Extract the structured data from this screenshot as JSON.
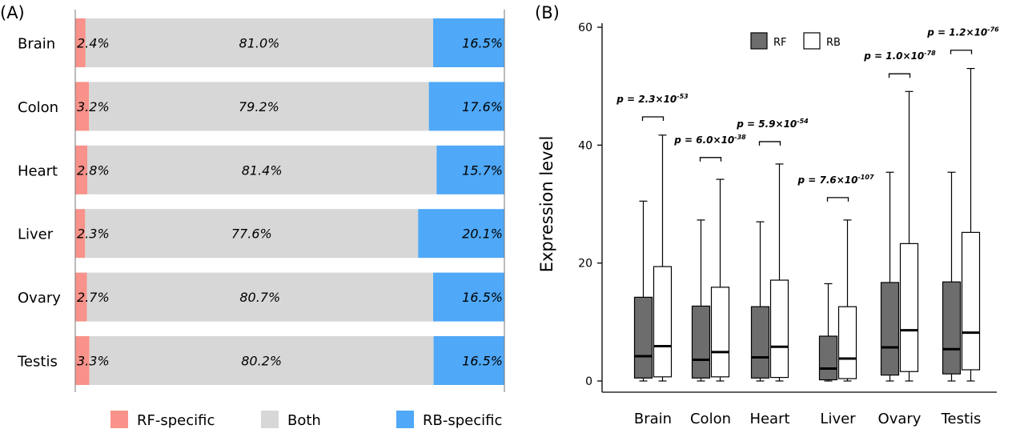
{
  "colors": {
    "rf_specific": "#f8928a",
    "both": "#d7d7d7",
    "rb_specific": "#4fa8f8",
    "rf_box": "#6d6d6d",
    "rb_box": "#ffffff",
    "line": "#000000"
  },
  "chart_data": [
    {
      "panel_label": "(A)",
      "type": "bar",
      "orientation": "horizontal",
      "stacked": true,
      "categories": [
        "Brain",
        "Colon",
        "Heart",
        "Liver",
        "Ovary",
        "Testis"
      ],
      "series": [
        {
          "name": "RF-specific",
          "values": [
            2.4,
            3.2,
            2.8,
            2.3,
            2.7,
            3.3
          ],
          "labels": [
            "2.4%",
            "3.2%",
            "2.8%",
            "2.3%",
            "2.7%",
            "3.3%"
          ]
        },
        {
          "name": "Both",
          "values": [
            81.0,
            79.2,
            81.4,
            77.6,
            80.7,
            80.2
          ],
          "labels": [
            "81.0%",
            "79.2%",
            "81.4%",
            "77.6%",
            "80.7%",
            "80.2%"
          ]
        },
        {
          "name": "RB-specific",
          "values": [
            16.5,
            17.6,
            15.7,
            20.1,
            16.5,
            16.5
          ],
          "labels": [
            "16.5%",
            "17.6%",
            "15.7%",
            "20.1%",
            "16.5%",
            "16.5%"
          ]
        }
      ],
      "xlim": [
        0,
        100
      ],
      "legend": [
        "RF-specific",
        "Both",
        "RB-specific"
      ],
      "legend_position": "bottom"
    },
    {
      "panel_label": "(B)",
      "type": "box",
      "categories": [
        "Brain",
        "Colon",
        "Heart",
        "Liver",
        "Ovary",
        "Testis"
      ],
      "ylabel": "Expression level",
      "ylim": [
        0,
        60
      ],
      "yticks": [
        0,
        20,
        40,
        60
      ],
      "legend": [
        "RF",
        "RB"
      ],
      "legend_position": "top-center",
      "series": [
        {
          "name": "RF",
          "boxes": [
            {
              "min": 0,
              "q1": 0.5,
              "median": 4.2,
              "q3": 14.2,
              "max": 30.5
            },
            {
              "min": 0,
              "q1": 0.5,
              "median": 3.6,
              "q3": 12.7,
              "max": 27.3
            },
            {
              "min": 0,
              "q1": 0.5,
              "median": 4.0,
              "q3": 12.6,
              "max": 27.0
            },
            {
              "min": 0,
              "q1": 0.2,
              "median": 2.1,
              "q3": 7.6,
              "max": 16.5
            },
            {
              "min": 0,
              "q1": 1.0,
              "median": 5.7,
              "q3": 16.7,
              "max": 35.4
            },
            {
              "min": 0,
              "q1": 1.2,
              "median": 5.4,
              "q3": 16.8,
              "max": 35.4
            }
          ]
        },
        {
          "name": "RB",
          "boxes": [
            {
              "min": 0,
              "q1": 0.7,
              "median": 5.9,
              "q3": 19.4,
              "max": 41.7
            },
            {
              "min": 0,
              "q1": 0.7,
              "median": 4.9,
              "q3": 15.9,
              "max": 34.2
            },
            {
              "min": 0,
              "q1": 0.6,
              "median": 5.8,
              "q3": 17.1,
              "max": 36.8
            },
            {
              "min": 0,
              "q1": 0.4,
              "median": 3.8,
              "q3": 12.6,
              "max": 27.3
            },
            {
              "min": 0,
              "q1": 1.6,
              "median": 8.6,
              "q3": 23.3,
              "max": 49.1
            },
            {
              "min": 0,
              "q1": 1.9,
              "median": 8.2,
              "q3": 25.2,
              "max": 53.0
            }
          ]
        }
      ],
      "pvalues": [
        {
          "category": "Brain",
          "base": "p = 2.3×10",
          "exp": "-53",
          "bracket_y": 44.8
        },
        {
          "category": "Colon",
          "base": "p = 6.0×10",
          "exp": "-38",
          "bracket_y": 37.9
        },
        {
          "category": "Heart",
          "base": "p = 5.9×10",
          "exp": "-54",
          "bracket_y": 40.6
        },
        {
          "category": "Liver",
          "base": "p = 7.6×10",
          "exp": "-107",
          "bracket_y": 31.1
        },
        {
          "category": "Ovary",
          "base": "p = 1.0×10",
          "exp": "-78",
          "bracket_y": 52.1
        },
        {
          "category": "Testis",
          "base": "p = 1.2×10",
          "exp": "-76",
          "bracket_y": 56.1
        }
      ]
    }
  ]
}
